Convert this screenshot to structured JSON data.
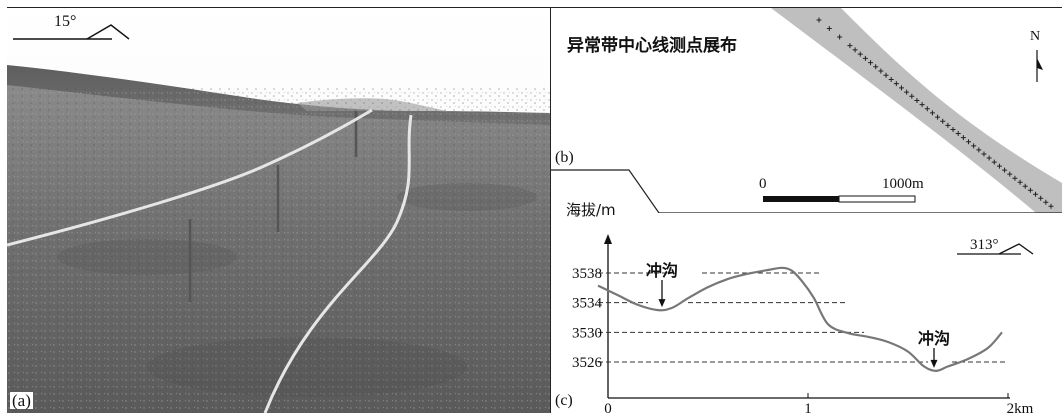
{
  "panel_a": {
    "label": "(a)",
    "orientation": "15°"
  },
  "panel_b": {
    "label": "(b)",
    "title": "异常带中心线测点展布",
    "north": "N",
    "scale_start": "0",
    "scale_end": "1000m"
  },
  "panel_c": {
    "label": "(c)",
    "ylabel": "海拔/m",
    "orientation": "313°",
    "annotation_1": "冲沟",
    "annotation_2": "冲沟"
  },
  "chart_data": {
    "type": "line",
    "title": "",
    "xlabel": "",
    "ylabel": "海拔/m",
    "x_unit": "km",
    "xlim": [
      0,
      2
    ],
    "ylim": [
      3524,
      3540
    ],
    "xticks": [
      "0",
      "1",
      "2km"
    ],
    "yticks": [
      3538,
      3534,
      3530,
      3526
    ],
    "grid": "dashed reference lines at each y tick",
    "series": [
      {
        "x": [
          -0.05,
          0.05,
          0.15,
          0.25,
          0.32,
          0.4,
          0.5,
          0.6,
          0.7,
          0.8,
          0.87,
          0.92,
          0.97,
          1.03,
          1.1,
          1.2,
          1.3,
          1.4,
          1.5,
          1.58,
          1.64,
          1.7,
          1.8,
          1.9,
          1.97
        ],
        "y": [
          3536.3,
          3535.0,
          3533.7,
          3533.0,
          3533.3,
          3534.6,
          3536.1,
          3537.2,
          3537.9,
          3538.4,
          3538.7,
          3538.3,
          3536.9,
          3534.6,
          3531.1,
          3529.9,
          3529.4,
          3528.7,
          3527.4,
          3525.4,
          3524.8,
          3525.4,
          3526.4,
          3527.9,
          3530.0
        ]
      }
    ],
    "annotations": [
      {
        "text": "冲沟",
        "x": 0.27,
        "y": 3533.0
      },
      {
        "text": "冲沟",
        "x": 1.63,
        "y": 3524.8
      }
    ]
  }
}
